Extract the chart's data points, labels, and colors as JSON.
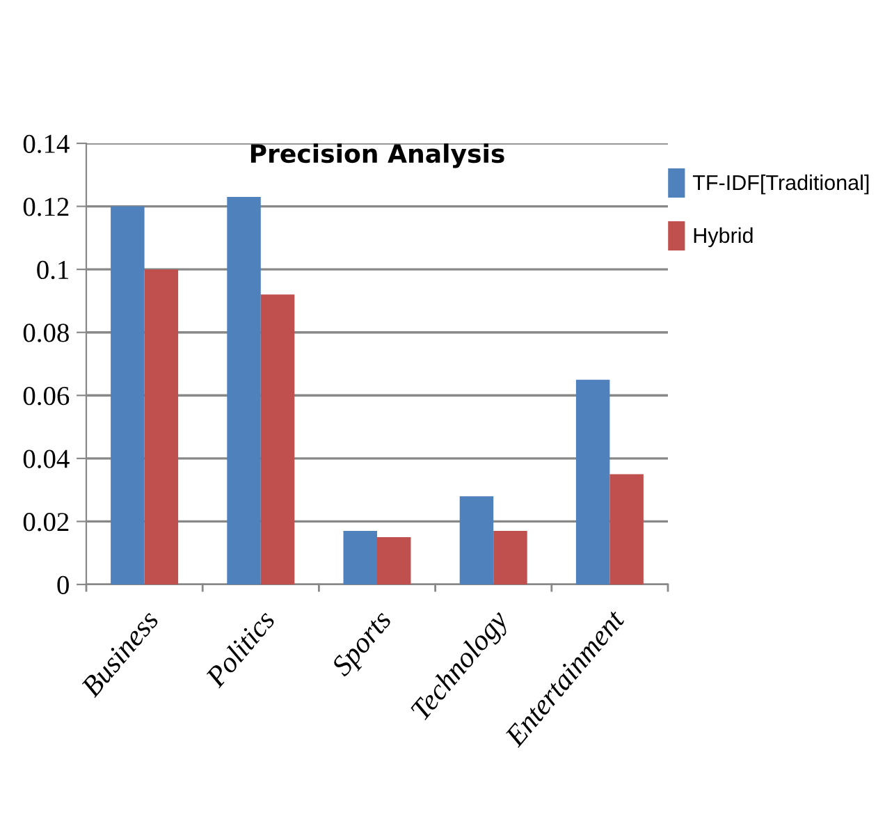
{
  "chart_data": {
    "type": "bar",
    "title": "Precision Analysis",
    "categories": [
      "Business",
      "Politics",
      "Sports",
      "Technology",
      "Entertainment"
    ],
    "series": [
      {
        "name": "TF-IDF[Traditional]",
        "color": "#4f81bd",
        "values": [
          0.12,
          0.123,
          0.017,
          0.028,
          0.065
        ]
      },
      {
        "name": "Hybrid",
        "color": "#c0504d",
        "values": [
          0.1,
          0.092,
          0.015,
          0.017,
          0.035
        ]
      }
    ],
    "ylim": [
      0,
      0.14
    ],
    "yticks": [
      0,
      0.02,
      0.04,
      0.06,
      0.08,
      0.1,
      0.12,
      0.14
    ],
    "grid": "y",
    "legend": "top right"
  }
}
